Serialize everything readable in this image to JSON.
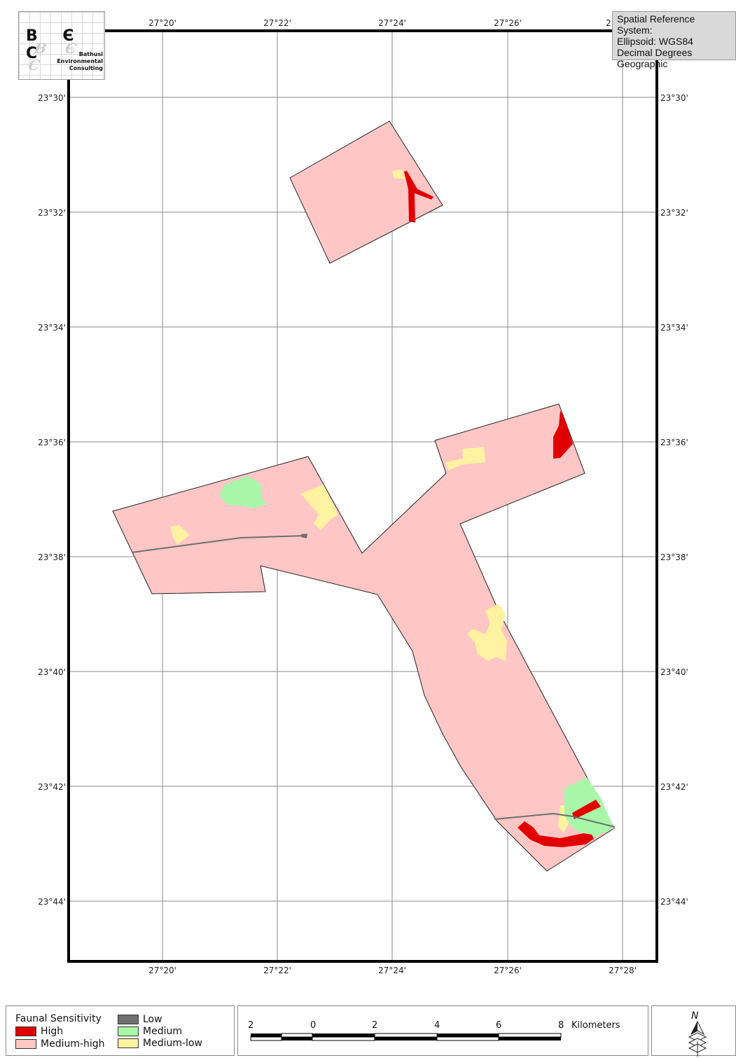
{
  "map": {
    "lon_labels": [
      "27°20'",
      "27°22'",
      "27°24'",
      "27°26'"
    ],
    "lon_labels_bottom": [
      "27°20'",
      "27°22'",
      "27°24'",
      "27°26'",
      "27°28'"
    ],
    "top_partial_label": "2",
    "lat_labels": [
      "23°30'",
      "23°32'",
      "23°34'",
      "23°36'",
      "23°38'",
      "23°40'",
      "23°42'",
      "23°44'"
    ],
    "colors": {
      "high": "#e00000",
      "medium_high": "#ffc6c6",
      "medium": "#a8f7a8",
      "medium_low": "#fff2a0",
      "low": "#6f6f6f"
    }
  },
  "logo": {
    "letters": "B Є C",
    "shadow": "B Є C",
    "line1": "Bathusi",
    "line2": "Environmental",
    "line3": "Consulting"
  },
  "spatial_reference": {
    "line1": "Spatial Reference System:",
    "line2": "Ellipsoid: WGS84",
    "line3": "Decimal Degrees",
    "line4": "Geographic"
  },
  "legend": {
    "title": "Faunal Sensitivity",
    "items": {
      "high": "High",
      "medium_high": "Medium-high",
      "low": "Low",
      "medium": "Medium",
      "medium_low": "Medium-low"
    }
  },
  "scale_bar": {
    "labels": [
      "2",
      "0",
      "2",
      "4",
      "6",
      "8"
    ],
    "unit": "Kilometers"
  },
  "north_arrow": {
    "label": "N",
    "icon": "north-arrow-icon"
  }
}
